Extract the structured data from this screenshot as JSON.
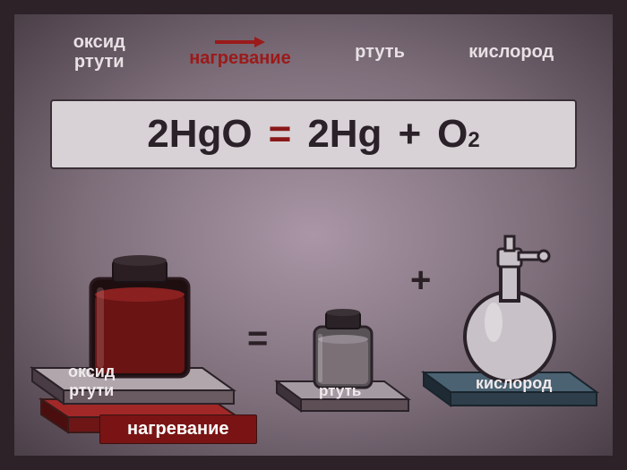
{
  "background": {
    "frame_color": "#2d2228",
    "gradient_inner": "#aa96a6",
    "gradient_outer": "#4a3e47"
  },
  "top_labels": {
    "oxide_mercury": "оксид\nртути",
    "heating": "нагревание",
    "mercury": "ртуть",
    "oxygen": "кислород",
    "text_color": "#e8e0e4",
    "heating_color": "#9b1a1a"
  },
  "equation": {
    "lhs": "2HgO",
    "eq": "=",
    "rhs1": "2Hg",
    "plus": "+",
    "rhs2": "O",
    "rhs2_sub": "2",
    "box_bg": "#d8d2d6",
    "box_border": "#3a2f35",
    "text_color": "#2a2228",
    "eq_color": "#8a1818"
  },
  "scene": {
    "eq_sign": "=",
    "plus_sign": "+",
    "heating_label": "нагревание",
    "heating_bg": "#7a1414",
    "heating_text": "#ffffff",
    "left": {
      "slab_top": "#b0a6ac",
      "slab_front": "#6a5a62",
      "slab_side": "#4a3c44",
      "slab_red_top": "#a22828",
      "slab_red_front": "#6e1616",
      "jar_body": "#1e0e10",
      "jar_liquid": "#6a1414",
      "jar_cap": "#2a1e22",
      "label": "оксид\nртути"
    },
    "mid": {
      "slab_top": "#a49aa2",
      "slab_front": "#5e4e56",
      "slab_side": "#3e323a",
      "jar_body": "#585256",
      "jar_liquid": "#7a7076",
      "jar_cap": "#2a2226",
      "label": "ртуть"
    },
    "right": {
      "slab_top": "#4a6272",
      "slab_front": "#2e3e4a",
      "slab_side": "#1e2a34",
      "flask_stroke": "#2a2228",
      "flask_fill": "#c8c2c8",
      "label": "кислород"
    }
  }
}
